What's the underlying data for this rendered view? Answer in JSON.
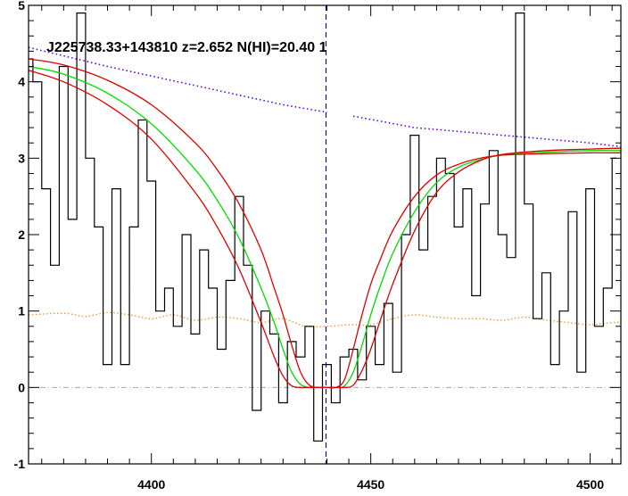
{
  "chart_data": {
    "type": "line",
    "title": "J225738.33+143810 z=2.652 N(HI)=20.40 1",
    "xlabel": "",
    "ylabel": "",
    "xlim": [
      4372,
      4507
    ],
    "ylim": [
      -1,
      5
    ],
    "x_ticks": [
      4400,
      4450,
      4500
    ],
    "x_tick_labels": [
      "4400",
      "4450",
      "4500"
    ],
    "y_ticks": [
      -1,
      0,
      1,
      2,
      3,
      4,
      5
    ],
    "y_tick_labels": [
      "-1",
      "0",
      "1",
      "2",
      "3",
      "4",
      "5"
    ],
    "grid": false,
    "legend": "none",
    "dashed_vline_x": 4439.8,
    "zero_line_y": 0,
    "colors": {
      "spectrum": "#000000",
      "fit": "#00dd00",
      "fit_bounds": "#dd0000",
      "continuum": "#5500ee",
      "error": "#ee9933",
      "vline": "#0000cc",
      "zero_line": "#aaaaaa"
    },
    "series": [
      {
        "role": "spectrum",
        "style": "step",
        "x": [
          4372,
          4374,
          4376,
          4378,
          4380,
          4382,
          4384,
          4386,
          4388,
          4390,
          4392,
          4394,
          4396,
          4398,
          4400,
          4402,
          4404,
          4406,
          4408,
          4410,
          4412,
          4414,
          4416,
          4418,
          4420,
          4422,
          4424,
          4426,
          4428,
          4430,
          4432,
          4434,
          4436,
          4438,
          4440,
          4442,
          4444,
          4446,
          4448,
          4450,
          4452,
          4454,
          4456,
          4458,
          4460,
          4462,
          4464,
          4466,
          4468,
          4470,
          4472,
          4474,
          4476,
          4478,
          4480,
          4482,
          4484,
          4486,
          4488,
          4490,
          4492,
          4494,
          4496,
          4498,
          4500,
          4502,
          4504,
          4506
        ],
        "y": [
          4.3,
          4.0,
          2.6,
          1.6,
          4.2,
          2.2,
          4.9,
          3.0,
          2.1,
          0.3,
          2.6,
          0.3,
          2.1,
          3.5,
          2.7,
          1.0,
          1.3,
          0.8,
          2.0,
          0.7,
          1.8,
          1.3,
          0.5,
          1.4,
          2.5,
          1.6,
          -0.3,
          1.0,
          0.7,
          -0.2,
          0.6,
          0.4,
          0.8,
          -0.7,
          0.3,
          -0.2,
          0.4,
          0.5,
          0.1,
          0.8,
          0.3,
          1.1,
          0.2,
          2.0,
          3.3,
          1.8,
          2.5,
          3.0,
          2.8,
          2.1,
          2.6,
          1.2,
          2.4,
          3.1,
          2.0,
          1.7,
          4.9,
          2.4,
          0.9,
          1.5,
          0.3,
          1.0,
          2.3,
          0.2,
          2.6,
          0.8,
          1.3,
          3.0
        ]
      },
      {
        "role": "continuum",
        "style": "dotted",
        "x": [
          4372,
          4390,
          4410,
          4430,
          4440,
          4445,
          4446,
          4460,
          4480,
          4500,
          4507
        ],
        "y": [
          4.45,
          4.2,
          3.95,
          3.7,
          3.6,
          null,
          3.55,
          3.4,
          3.3,
          3.2,
          3.15
        ]
      },
      {
        "role": "error",
        "style": "dotted",
        "x": [
          4372,
          4380,
          4385,
          4390,
          4395,
          4400,
          4405,
          4410,
          4415,
          4420,
          4425,
          4430,
          4435,
          4440,
          4445,
          4450,
          4455,
          4460,
          4465,
          4470,
          4475,
          4480,
          4485,
          4490,
          4495,
          4500,
          4505,
          4507
        ],
        "y": [
          0.95,
          0.97,
          0.93,
          0.98,
          0.95,
          0.9,
          0.95,
          0.88,
          0.92,
          0.9,
          0.85,
          0.9,
          0.8,
          0.8,
          0.82,
          0.82,
          0.9,
          0.95,
          0.92,
          0.9,
          0.9,
          0.88,
          0.92,
          0.88,
          0.85,
          0.82,
          0.85,
          0.85
        ]
      },
      {
        "role": "fit",
        "style": "smooth",
        "x": [
          4372,
          4380,
          4390,
          4400,
          4410,
          4415,
          4420,
          4425,
          4428,
          4430,
          4432,
          4434,
          4436,
          4438,
          4440,
          4442,
          4444,
          4446,
          4448,
          4450,
          4452,
          4455,
          4460,
          4465,
          4470,
          4475,
          4480,
          4490,
          4500,
          4507
        ],
        "y": [
          4.2,
          4.1,
          3.85,
          3.45,
          2.85,
          2.45,
          1.95,
          1.3,
          0.85,
          0.5,
          0.2,
          0.04,
          0.0,
          0.0,
          0.0,
          0.0,
          0.02,
          0.2,
          0.55,
          0.95,
          1.3,
          1.75,
          2.3,
          2.68,
          2.88,
          2.98,
          3.04,
          3.08,
          3.1,
          3.1
        ]
      },
      {
        "role": "fit_upper",
        "style": "smooth",
        "x": [
          4372,
          4380,
          4390,
          4400,
          4410,
          4415,
          4420,
          4425,
          4428,
          4430,
          4432,
          4434,
          4436,
          4438,
          4440,
          4442,
          4444,
          4446,
          4448,
          4450,
          4452,
          4455,
          4460,
          4465,
          4470,
          4475,
          4480,
          4490,
          4500,
          4507
        ],
        "y": [
          4.3,
          4.22,
          4.02,
          3.7,
          3.2,
          2.85,
          2.4,
          1.8,
          1.3,
          0.95,
          0.55,
          0.2,
          0.03,
          0.0,
          0.0,
          0.0,
          0.0,
          0.03,
          0.22,
          0.5,
          0.85,
          1.35,
          2.05,
          2.55,
          2.82,
          2.97,
          3.05,
          3.1,
          3.12,
          3.13
        ]
      },
      {
        "role": "fit_lower",
        "style": "smooth",
        "x": [
          4372,
          4380,
          4390,
          4400,
          4410,
          4415,
          4420,
          4425,
          4428,
          4430,
          4432,
          4434,
          4436,
          4438,
          4440,
          4442,
          4444,
          4446,
          4448,
          4450,
          4452,
          4455,
          4460,
          4465,
          4470,
          4475,
          4480,
          4490,
          4500,
          4507
        ],
        "y": [
          4.15,
          4.0,
          3.7,
          3.25,
          2.55,
          2.1,
          1.55,
          0.85,
          0.4,
          0.15,
          0.02,
          0.0,
          0.0,
          0.0,
          0.0,
          0.0,
          0.1,
          0.5,
          0.95,
          1.35,
          1.65,
          2.05,
          2.5,
          2.78,
          2.92,
          3.0,
          3.04,
          3.06,
          3.07,
          3.07
        ]
      }
    ]
  }
}
